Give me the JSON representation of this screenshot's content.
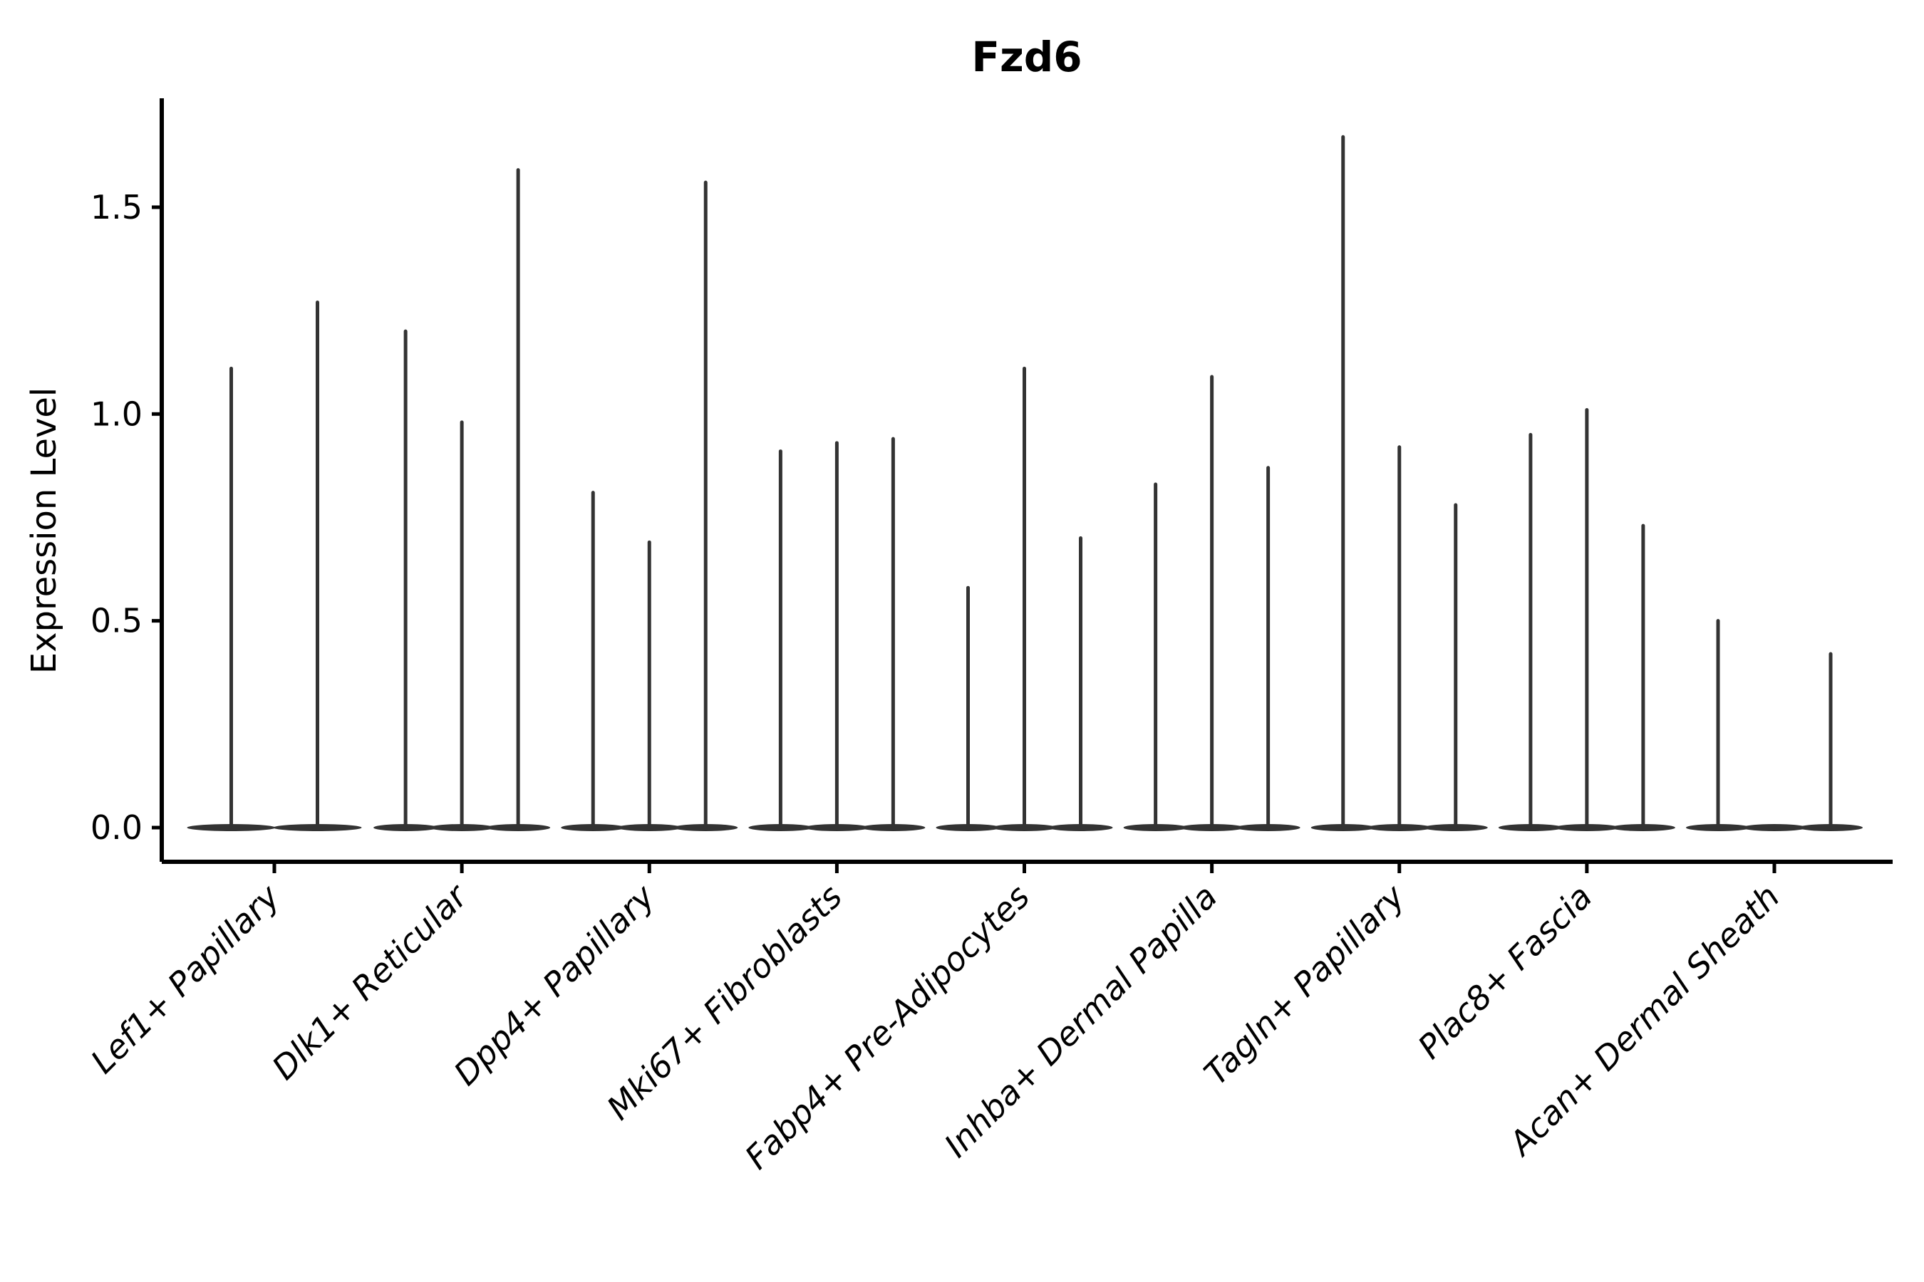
{
  "title": "Fzd6",
  "axes": {
    "ylabel": "Expression Level",
    "ytick_labels": [
      "0.0",
      "0.5",
      "1.0",
      "1.5"
    ],
    "ytick_values": [
      0.0,
      0.5,
      1.0,
      1.5
    ]
  },
  "colors": {
    "violin": "#333333",
    "axis": "#000000",
    "text": "#000000",
    "background": "#ffffff"
  },
  "chart_data": {
    "type": "violin",
    "title": "Fzd6",
    "xlabel": "",
    "ylabel": "Expression Level",
    "ylim": [
      -0.08,
      1.76
    ],
    "yticks": [
      0.0,
      0.5,
      1.0,
      1.5
    ],
    "ytick_labels": [
      "0.0",
      "0.5",
      "1.0",
      "1.5"
    ],
    "grid": false,
    "legend": "none",
    "orientation": "vertical",
    "note": "Single-cell expression violin plot; each cell type holds up to 3 thin violins whose mass sits at 0 with narrow spikes reaching the listed maxima.",
    "categories": [
      "Lef1+ Papillary",
      "Dlk1+ Reticular",
      "Dpp4+ Papillary",
      "Mki67+ Fibroblasts",
      "Fabp4+ Pre-Adipocytes",
      "Inhba+ Dermal Papilla",
      "Tagln+ Papillary",
      "Plac8+ Fascia",
      "Acan+ Dermal Sheath"
    ],
    "groups": [
      {
        "category": "Lef1+ Papillary",
        "violin_maxima": [
          1.11,
          1.27
        ]
      },
      {
        "category": "Dlk1+ Reticular",
        "violin_maxima": [
          1.2,
          0.98,
          1.59
        ]
      },
      {
        "category": "Dpp4+ Papillary",
        "violin_maxima": [
          0.81,
          0.69,
          1.56
        ]
      },
      {
        "category": "Mki67+ Fibroblasts",
        "violin_maxima": [
          0.91,
          0.93,
          0.94
        ]
      },
      {
        "category": "Fabp4+ Pre-Adipocytes",
        "violin_maxima": [
          0.58,
          1.11,
          0.7
        ]
      },
      {
        "category": "Inhba+ Dermal Papilla",
        "violin_maxima": [
          0.83,
          1.09,
          0.87
        ]
      },
      {
        "category": "Tagln+ Papillary",
        "violin_maxima": [
          1.67,
          0.92,
          0.78
        ]
      },
      {
        "category": "Plac8+ Fascia",
        "violin_maxima": [
          0.95,
          1.01,
          0.73
        ]
      },
      {
        "category": "Acan+ Dermal Sheath",
        "violin_maxima": [
          0.5,
          0.0,
          0.42
        ]
      }
    ]
  }
}
